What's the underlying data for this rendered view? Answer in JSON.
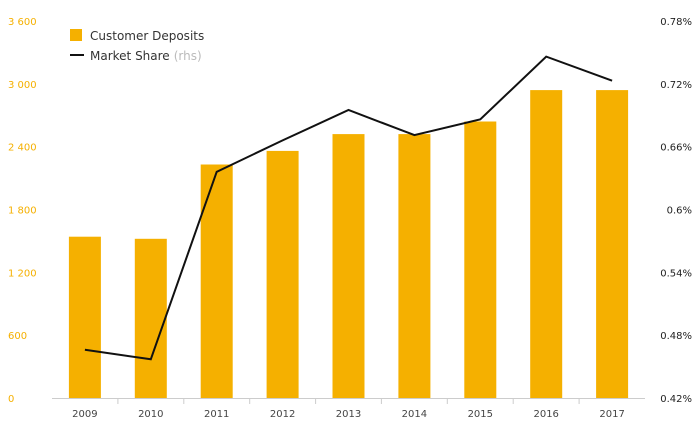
{
  "chart_data": {
    "type": "bar",
    "categories": [
      "2009",
      "2010",
      "2011",
      "2012",
      "2013",
      "2014",
      "2015",
      "2016",
      "2017"
    ],
    "series": [
      {
        "name": "Customer Deposits",
        "type": "bar",
        "axis": "left",
        "values": [
          1540,
          1520,
          2230,
          2360,
          2520,
          2520,
          2640,
          2940,
          2940
        ]
      },
      {
        "name": "Market Share",
        "type": "line",
        "axis": "right",
        "values": [
          0.466,
          0.457,
          0.636,
          0.666,
          0.695,
          0.671,
          0.686,
          0.746,
          0.723
        ]
      }
    ],
    "left_axis": {
      "min": 0,
      "max": 3600,
      "ticks": [
        0,
        600,
        1200,
        1800,
        2400,
        3000,
        3600
      ],
      "tick_labels": [
        "0",
        "600",
        "1 200",
        "1 800",
        "2 400",
        "3 000",
        "3 600"
      ]
    },
    "right_axis": {
      "min": 0.42,
      "max": 0.78,
      "ticks": [
        0.42,
        0.48,
        0.54,
        0.6,
        0.66,
        0.72,
        0.78
      ],
      "tick_labels": [
        "0.42%",
        "0.48%",
        "0.54%",
        "0.6%",
        "0.66%",
        "0.72%",
        "0.78%"
      ]
    },
    "legend": {
      "placement": "top-left",
      "items": [
        {
          "label": "Customer Deposits",
          "suffix": "",
          "marker": "square",
          "color": "#f5b000"
        },
        {
          "label": "Market Share",
          "suffix": "(rhs)",
          "marker": "line",
          "color": "#111111"
        }
      ]
    },
    "colors": {
      "bar": "#f5b000",
      "line": "#111111",
      "left_tick": "#f5b000",
      "right_tick": "#222222",
      "baseline": "#cccccc"
    },
    "grid": false
  }
}
